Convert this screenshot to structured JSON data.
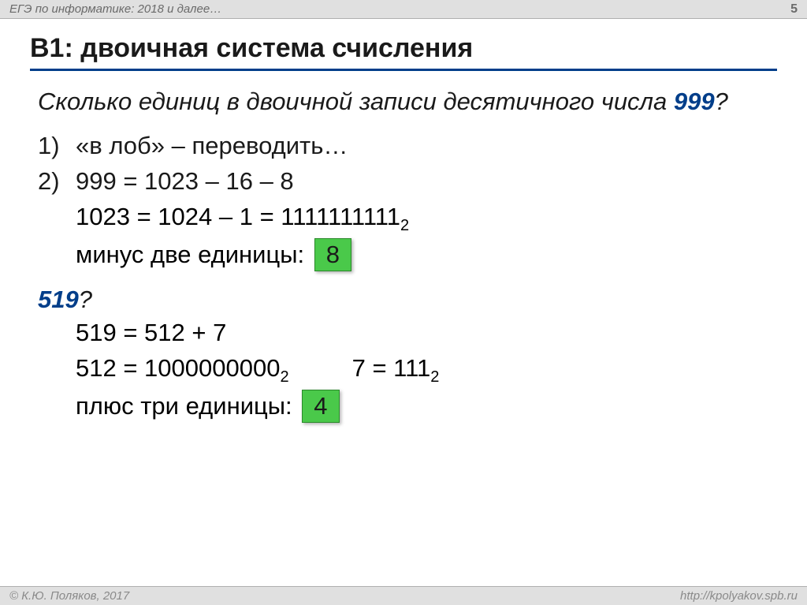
{
  "header": {
    "left": "ЕГЭ по информатике: 2018 и далее…",
    "page_number": "5"
  },
  "title": "B1: двоичная система счисления",
  "question": {
    "text_before": "Сколько единиц в двоичной записи десятичного числа ",
    "highlight": "999",
    "text_after": "?"
  },
  "list": {
    "item1": {
      "num": "1)",
      "text": "«в лоб» – переводить…"
    },
    "item2": {
      "num": "2)",
      "text": "999 = 1023 – 16 – 8"
    }
  },
  "lines": {
    "line1_a": "1023 = 1024 – 1 = 1111111111",
    "line1_sub": "2",
    "line2": "минус две единицы:",
    "answer1": "8",
    "q2": "519",
    "q2_mark": "?",
    "line3": "519 = 512 + 7",
    "line4_a": "512 = 1000000000",
    "line4_sub": "2",
    "line4_b": "7 = 111",
    "line4_sub2": "2",
    "line5": "плюс три единицы:",
    "answer2": "4"
  },
  "footer": {
    "left": "© К.Ю. Поляков, 2017",
    "right": "http://kpolyakov.spb.ru"
  },
  "colors": {
    "header_bg": "#e0e0e0",
    "title_underline": "#003e8a",
    "highlight_text": "#003e8a",
    "answer_box_bg": "#4ac94a",
    "answer_box_border": "#2a8a2a"
  }
}
